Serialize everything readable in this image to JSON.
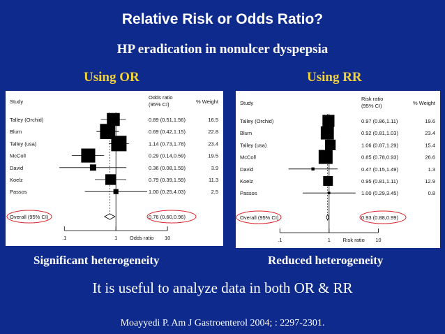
{
  "slide": {
    "title": "Relative Risk or Odds Ratio?",
    "subtitle": "HP eradication in nonulcer dyspepsia",
    "conclusion": "It is useful to analyze data in both OR & RR",
    "citation": "Moayyedi P. Am J Gastroenterol 2004;  : 2297-2301."
  },
  "colors": {
    "background": "#0d2a8c",
    "heading": "#f2d13a",
    "highlight_ring": "#d9262b"
  },
  "chart_data": [
    {
      "type": "forest",
      "heading": "Using OR",
      "caption": "Significant heterogeneity",
      "col_study": "Study",
      "col_effect": [
        "Odds ratio",
        "(95% CI)"
      ],
      "col_weight": "% Weight",
      "scale": "log",
      "xlim": [
        0.05,
        12
      ],
      "xticks": [
        {
          "value": 0.1,
          "label": ".1"
        },
        {
          "value": 1,
          "label": "1"
        },
        {
          "value": 10,
          "label": "10"
        }
      ],
      "xlabel": "Odds ratio",
      "studies": [
        {
          "name": "Talley (Orchid)",
          "est": 0.89,
          "lo": 0.51,
          "hi": 1.56,
          "ci_text": "0.89 (0.51,1.56)",
          "weight": 16.5,
          "weight_text": "16.5"
        },
        {
          "name": "Blum",
          "est": 0.69,
          "lo": 0.42,
          "hi": 1.15,
          "ci_text": "0.69 (0.42,1.15)",
          "weight": 22.8,
          "weight_text": "22.8"
        },
        {
          "name": "Talley (usa)",
          "est": 1.14,
          "lo": 0.73,
          "hi": 1.78,
          "ci_text": "1.14 (0.73,1.78)",
          "weight": 23.4,
          "weight_text": "23.4"
        },
        {
          "name": "McColl",
          "est": 0.29,
          "lo": 0.14,
          "hi": 0.59,
          "ci_text": "0.29 (0.14,0.59)",
          "weight": 19.5,
          "weight_text": "19.5"
        },
        {
          "name": "David",
          "est": 0.36,
          "lo": 0.08,
          "hi": 1.59,
          "ci_text": "0.36 (0.08,1.59)",
          "weight": 3.9,
          "weight_text": "3.9"
        },
        {
          "name": "Koelz",
          "est": 0.79,
          "lo": 0.39,
          "hi": 1.59,
          "ci_text": "0.79 (0.39,1.59)",
          "weight": 11.3,
          "weight_text": "11.3"
        },
        {
          "name": "Passos",
          "est": 1.0,
          "lo": 0.25,
          "hi": 4.03,
          "ci_text": "1.00 (0.25,4.03)",
          "weight": 2.5,
          "weight_text": "2.5"
        }
      ],
      "overall": {
        "label": "Overall (95% CI)",
        "est": 0.76,
        "lo": 0.6,
        "hi": 0.96,
        "ci_text": "0.76 (0.60,0.96)"
      }
    },
    {
      "type": "forest",
      "heading": "Using RR",
      "caption": "Reduced heterogeneity",
      "col_study": "Study",
      "col_effect": [
        "Risk ratio",
        "(95% CI)"
      ],
      "col_weight": "% Weight",
      "scale": "log",
      "xlim": [
        0.05,
        12
      ],
      "xticks": [
        {
          "value": 0.1,
          "label": ".1"
        },
        {
          "value": 1,
          "label": "1"
        },
        {
          "value": 10,
          "label": "10"
        }
      ],
      "xlabel": "Risk ratio",
      "studies": [
        {
          "name": "Talley (Orchid)",
          "est": 0.97,
          "lo": 0.86,
          "hi": 1.11,
          "ci_text": "0.97 (0.86,1.11)",
          "weight": 19.6,
          "weight_text": "19.6"
        },
        {
          "name": "Blum",
          "est": 0.92,
          "lo": 0.81,
          "hi": 1.03,
          "ci_text": "0.92 (0.81,1.03)",
          "weight": 23.4,
          "weight_text": "23.4"
        },
        {
          "name": "Talley (usa)",
          "est": 1.06,
          "lo": 0.87,
          "hi": 1.29,
          "ci_text": "1.06 (0.87,1.29)",
          "weight": 15.4,
          "weight_text": "15.4"
        },
        {
          "name": "McColl",
          "est": 0.85,
          "lo": 0.78,
          "hi": 0.93,
          "ci_text": "0.85 (0.78,0.93)",
          "weight": 26.6,
          "weight_text": "26.6"
        },
        {
          "name": "David",
          "est": 0.47,
          "lo": 0.15,
          "hi": 1.49,
          "ci_text": "0.47 (0.15,1.49)",
          "weight": 1.3,
          "weight_text": "1.3"
        },
        {
          "name": "Koelz",
          "est": 0.95,
          "lo": 0.81,
          "hi": 1.11,
          "ci_text": "0.95 (0.81,1.11)",
          "weight": 12.9,
          "weight_text": "12.9"
        },
        {
          "name": "Passos",
          "est": 1.0,
          "lo": 0.29,
          "hi": 3.45,
          "ci_text": "1.00 (0.29,3.45)",
          "weight": 0.8,
          "weight_text": "0.8"
        }
      ],
      "overall": {
        "label": "Overall (95% CI)",
        "est": 0.93,
        "lo": 0.88,
        "hi": 0.99,
        "ci_text": "0.93 (0.88,0.99)"
      }
    }
  ]
}
